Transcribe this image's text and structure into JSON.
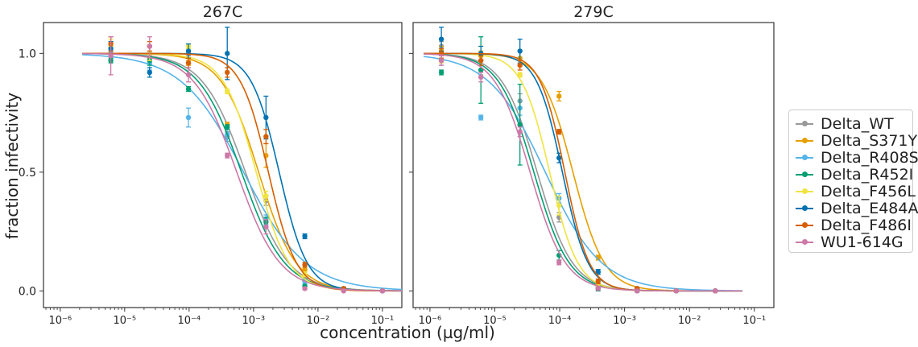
{
  "chart_data": {
    "type": "line",
    "subtype": "dose-response neutralization curves with error bars",
    "xlabel": "concentration (µg/ml)",
    "ylabel": "fraction infectivity",
    "xscale": "log",
    "yticks": [
      "0.0",
      "0.5",
      "1.0"
    ],
    "ylim": [
      -0.07,
      1.13
    ],
    "legend_position": "right",
    "grid": false,
    "series_styles": [
      {
        "name": "Delta_WT",
        "color": "#999999"
      },
      {
        "name": "Delta_S371Y",
        "color": "#e69f00"
      },
      {
        "name": "Delta_R408S",
        "color": "#56b4e9"
      },
      {
        "name": "Delta_R452I",
        "color": "#009e73"
      },
      {
        "name": "Delta_F456L",
        "color": "#f0e442"
      },
      {
        "name": "Delta_E484A",
        "color": "#0072b2"
      },
      {
        "name": "Delta_F486I",
        "color": "#d55e00"
      },
      {
        "name": "WU1-614G",
        "color": "#cc79a7"
      }
    ],
    "panels": [
      {
        "title": "267C",
        "xlim": [
          5.5e-07,
          0.2
        ],
        "xticks": [
          1e-06,
          1e-05,
          0.0001,
          0.001,
          0.01,
          0.1
        ],
        "xtick_labels": [
          "10⁻⁶",
          "10⁻⁵",
          "10⁻⁴",
          "10⁻³",
          "10⁻²",
          "10⁻¹"
        ],
        "x": [
          6.1e-06,
          2.44e-05,
          9.77e-05,
          0.000391,
          0.00156,
          0.00625,
          0.025,
          0.1
        ],
        "curve_range": [
          2.2e-06,
          0.2
        ],
        "series": [
          {
            "name": "Delta_WT",
            "ic50": 0.00075,
            "hill": 1.3,
            "values": [
              1.03,
              0.98,
              1.0,
              0.65,
              0.38,
              0.05,
              0.01,
              0.0
            ],
            "errors": [
              0.02,
              0.02,
              0.01,
              0.02,
              0.02,
              0.01,
              0.005,
              0.003
            ]
          },
          {
            "name": "Delta_S371Y",
            "ic50": 0.0012,
            "hill": 1.5,
            "values": [
              1.03,
              1.03,
              0.96,
              0.7,
              0.57,
              0.09,
              0.01,
              0.0
            ],
            "errors": [
              0.02,
              0.02,
              0.01,
              0.01,
              0.05,
              0.01,
              0.005,
              0.003
            ]
          },
          {
            "name": "Delta_R408S",
            "ic50": 0.0007,
            "hill": 0.9,
            "values": [
              1.0,
              0.96,
              0.73,
              0.66,
              0.3,
              0.04,
              0.01,
              0.0
            ],
            "errors": [
              0.03,
              0.03,
              0.04,
              0.02,
              0.02,
              0.01,
              0.005,
              0.003
            ]
          },
          {
            "name": "Delta_R452I",
            "ic50": 0.00065,
            "hill": 1.3,
            "values": [
              0.97,
              0.97,
              0.85,
              0.69,
              0.29,
              0.02,
              0.01,
              0.0
            ],
            "errors": [
              0.01,
              0.02,
              0.01,
              0.01,
              0.02,
              0.005,
              0.005,
              0.003
            ]
          },
          {
            "name": "Delta_F456L",
            "ic50": 0.0011,
            "hill": 1.7,
            "values": [
              1.03,
              1.0,
              1.03,
              0.84,
              0.4,
              0.07,
              0.01,
              0.0
            ],
            "errors": [
              0.03,
              0.03,
              0.01,
              0.01,
              0.02,
              0.01,
              0.005,
              0.003
            ]
          },
          {
            "name": "Delta_E484A",
            "ic50": 0.0025,
            "hill": 2.0,
            "values": [
              1.02,
              0.92,
              1.01,
              1.0,
              0.73,
              0.23,
              0.01,
              0.0
            ],
            "errors": [
              0.03,
              0.02,
              0.03,
              0.11,
              0.09,
              0.01,
              0.005,
              0.003
            ]
          },
          {
            "name": "Delta_F486I",
            "ic50": 0.0017,
            "hill": 2.0,
            "values": [
              1.04,
              1.03,
              0.96,
              0.92,
              0.65,
              0.11,
              0.01,
              0.0
            ],
            "errors": [
              0.03,
              0.02,
              0.02,
              0.02,
              0.03,
              0.01,
              0.005,
              0.003
            ]
          },
          {
            "name": "WU1-614G",
            "ic50": 0.00055,
            "hill": 1.3,
            "values": [
              0.99,
              1.03,
              0.91,
              0.57,
              0.27,
              0.01,
              0.0,
              0.0
            ],
            "errors": [
              0.08,
              0.04,
              0.03,
              0.01,
              0.03,
              0.005,
              0.003,
              0.002
            ]
          }
        ]
      },
      {
        "title": "279C",
        "xlim": [
          5.5e-07,
          0.2
        ],
        "xticks": [
          1e-06,
          1e-05,
          0.0001,
          0.001,
          0.01,
          0.1
        ],
        "xtick_labels": [
          "10⁻⁶",
          "10⁻⁵",
          "10⁻⁴",
          "10⁻³",
          "10⁻²",
          "10⁻¹"
        ],
        "x": [
          1.5e-06,
          6.1e-06,
          2.44e-05,
          9.77e-05,
          0.000391,
          0.00156,
          0.00625,
          0.025
        ],
        "curve_range": [
          8e-07,
          0.065
        ],
        "series": [
          {
            "name": "Delta_WT",
            "ic50": 4.5e-05,
            "hill": 1.6,
            "values": [
              1.03,
              0.93,
              0.8,
              0.31,
              0.02,
              0.01,
              0.0,
              0.0
            ],
            "errors": [
              0.02,
              0.02,
              0.03,
              0.02,
              0.01,
              0.005,
              0.003,
              0.002
            ]
          },
          {
            "name": "Delta_S371Y",
            "ic50": 0.00016,
            "hill": 1.8,
            "values": [
              1.01,
              0.99,
              0.98,
              0.82,
              0.14,
              0.01,
              0.0,
              0.0
            ],
            "errors": [
              0.02,
              0.02,
              0.03,
              0.02,
              0.01,
              0.005,
              0.003,
              0.002
            ]
          },
          {
            "name": "Delta_R408S",
            "ic50": 6e-05,
            "hill": 1.0,
            "values": [
              0.97,
              0.73,
              0.77,
              0.39,
              0.08,
              0.01,
              0.0,
              0.0
            ],
            "errors": [
              0.02,
              0.01,
              0.03,
              0.02,
              0.01,
              0.005,
              0.003,
              0.002
            ]
          },
          {
            "name": "Delta_R452I",
            "ic50": 4e-05,
            "hill": 1.6,
            "values": [
              0.92,
              0.93,
              0.7,
              0.15,
              0.01,
              0.0,
              0.0,
              0.0
            ],
            "errors": [
              0.01,
              0.14,
              0.17,
              0.02,
              0.01,
              0.005,
              0.003,
              0.002
            ]
          },
          {
            "name": "Delta_F456L",
            "ic50": 7e-05,
            "hill": 2.0,
            "values": [
              0.97,
              1.0,
              0.91,
              0.36,
              0.03,
              0.01,
              0.0,
              0.0
            ],
            "errors": [
              0.01,
              0.03,
              0.01,
              0.04,
              0.01,
              0.005,
              0.003,
              0.002
            ]
          },
          {
            "name": "Delta_E484A",
            "ic50": 0.00011,
            "hill": 2.2,
            "values": [
              1.06,
              1.0,
              1.01,
              0.56,
              0.08,
              0.01,
              0.0,
              0.0
            ],
            "errors": [
              0.05,
              0.03,
              0.05,
              0.02,
              0.01,
              0.005,
              0.003,
              0.002
            ]
          },
          {
            "name": "Delta_F486I",
            "ic50": 0.00012,
            "hill": 2.3,
            "values": [
              1.0,
              0.97,
              0.95,
              0.67,
              0.04,
              0.01,
              0.0,
              0.0
            ],
            "errors": [
              0.02,
              0.02,
              0.02,
              0.01,
              0.01,
              0.005,
              0.003,
              0.002
            ]
          },
          {
            "name": "WU1-614G",
            "ic50": 3.5e-05,
            "hill": 1.6,
            "values": [
              0.97,
              0.9,
              0.67,
              0.12,
              0.01,
              0.0,
              0.0,
              0.0
            ],
            "errors": [
              0.02,
              0.02,
              0.02,
              0.01,
              0.005,
              0.003,
              0.002,
              0.002
            ]
          }
        ]
      }
    ]
  }
}
